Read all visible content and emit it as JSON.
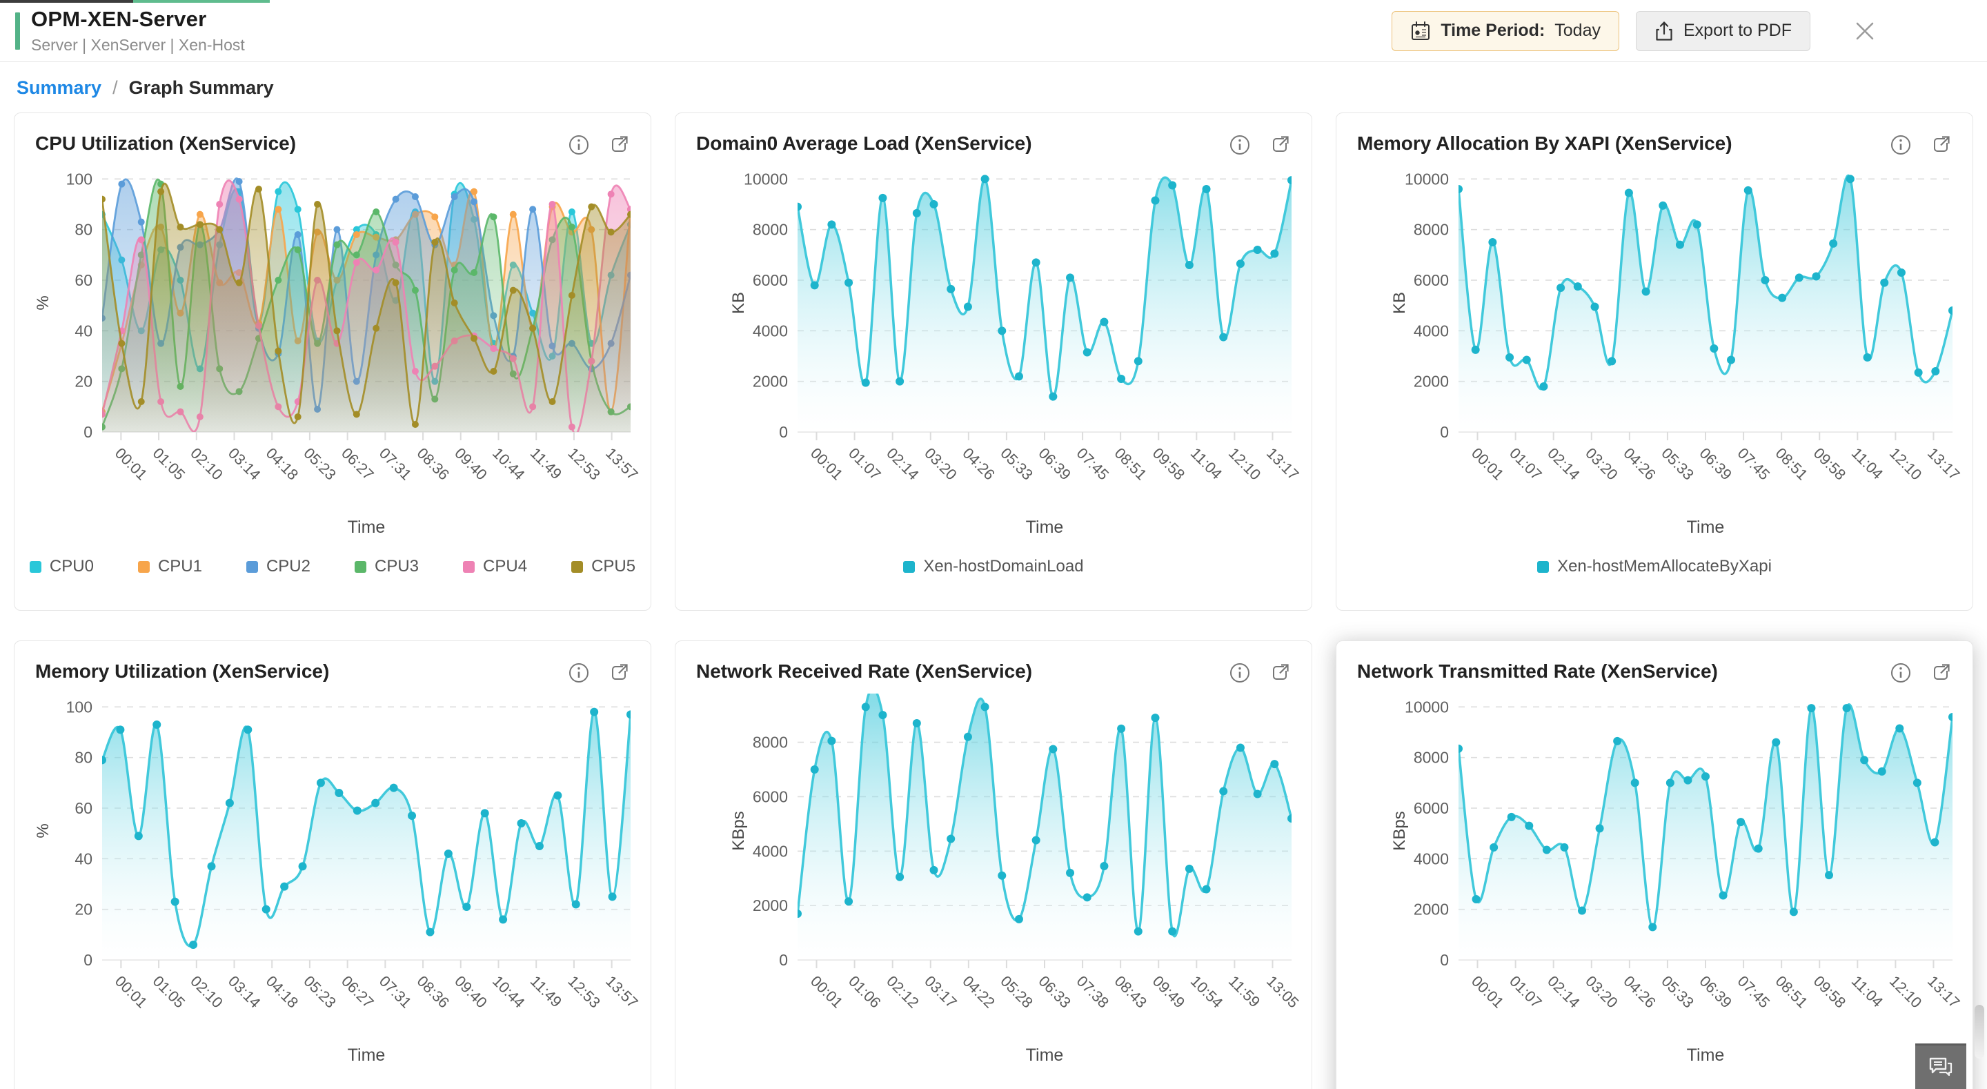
{
  "header": {
    "title": "OPM-XEN-Server",
    "subtitle": "Server | XenServer | Xen-Host",
    "time_period_label": "Time Period:",
    "time_period_value": "Today",
    "export_label": "Export to PDF",
    "icons": [
      "calendar-icon",
      "export-icon",
      "close-icon"
    ]
  },
  "breadcrumb": {
    "link": "Summary",
    "separator": "/",
    "current": "Graph Summary"
  },
  "colors": {
    "accent_green": "#53b287",
    "link_blue": "#1e88e5",
    "cyan": "#29c7d9",
    "orange": "#f7a54b",
    "blue": "#5b9cd9",
    "green": "#5bb769",
    "pink": "#ee82b4",
    "olive": "#a38d27"
  },
  "chart_data": [
    {
      "type": "area",
      "title": "CPU Utilization (XenService)",
      "xlabel": "Time",
      "ylabel": "%",
      "ylim": [
        0,
        100
      ],
      "yticks": [
        0,
        20,
        40,
        60,
        80,
        100
      ],
      "grid": "dashed-horizontal",
      "legend_position": "bottom",
      "categories": [
        "00:01",
        "01:05",
        "02:10",
        "03:14",
        "04:18",
        "05:23",
        "06:27",
        "07:31",
        "08:36",
        "09:40",
        "10:44",
        "11:49",
        "12:53",
        "13:57"
      ],
      "series": [
        {
          "name": "CPU0",
          "color": "#29c7d9",
          "values": [
            86,
            68,
            40,
            72,
            60,
            25,
            74,
            95,
            43,
            95,
            88,
            36,
            60,
            80,
            78,
            52,
            87,
            20,
            94,
            84,
            35,
            66,
            47,
            30,
            87,
            35,
            62,
            82
          ]
        },
        {
          "name": "CPU1",
          "color": "#f7a54b",
          "values": [
            8,
            35,
            66,
            81,
            47,
            86,
            59,
            63,
            43,
            88,
            36,
            79,
            60,
            78,
            77,
            76,
            86,
            85,
            66,
            95,
            33,
            86,
            41,
            89,
            79,
            80,
            8,
            88
          ]
        },
        {
          "name": "CPU2",
          "color": "#5b9cd9",
          "values": [
            45,
            98,
            83,
            35,
            73,
            74,
            80,
            99,
            41,
            31,
            78,
            9,
            80,
            20,
            70,
            92,
            93,
            74,
            93,
            91,
            46,
            30,
            88,
            34,
            35,
            25,
            35,
            62
          ]
        },
        {
          "name": "CPU3",
          "color": "#5bb769",
          "values": [
            2,
            25,
            70,
            98,
            18,
            82,
            25,
            16,
            37,
            60,
            72,
            35,
            74,
            70,
            87,
            66,
            56,
            13,
            64,
            63,
            85,
            23,
            41,
            76,
            81,
            28,
            8,
            10
          ]
        },
        {
          "name": "CPU4",
          "color": "#ee82b4",
          "values": [
            7,
            40,
            76,
            12,
            8,
            6,
            90,
            92,
            42,
            10,
            12,
            60,
            35,
            67,
            64,
            75,
            24,
            26,
            36,
            38,
            33,
            29,
            10,
            90,
            2,
            28,
            94,
            88
          ]
        },
        {
          "name": "CPU5",
          "color": "#a38d27",
          "values": [
            92,
            35,
            12,
            95,
            81,
            82,
            80,
            59,
            96,
            32,
            6,
            90,
            40,
            7,
            41,
            59,
            3,
            75,
            51,
            37,
            24,
            56,
            41,
            12,
            54,
            89,
            79,
            86
          ]
        }
      ]
    },
    {
      "type": "area",
      "title": "Domain0 Average Load (XenService)",
      "xlabel": "Time",
      "ylabel": "KB",
      "ylim": [
        0,
        10000
      ],
      "yticks": [
        0,
        2000,
        4000,
        6000,
        8000,
        10000
      ],
      "grid": "dashed-horizontal",
      "legend_position": "bottom",
      "categories": [
        "00:01",
        "01:07",
        "02:14",
        "03:20",
        "04:26",
        "05:33",
        "06:39",
        "07:45",
        "08:51",
        "09:58",
        "11:04",
        "12:10",
        "13:17"
      ],
      "series": [
        {
          "name": "Xen-hostDomainLoad",
          "color": "#41c9db",
          "dot": "#1db4cc",
          "values": [
            8900,
            5800,
            8200,
            5900,
            1950,
            9250,
            2000,
            8650,
            9000,
            5650,
            4950,
            10000,
            4000,
            2200,
            6700,
            1400,
            6100,
            3150,
            4350,
            2100,
            2800,
            9150,
            9750,
            6600,
            9600,
            3750,
            6650,
            7200,
            7050,
            9950
          ]
        }
      ]
    },
    {
      "type": "area",
      "title": "Memory Allocation By XAPI (XenService)",
      "xlabel": "Time",
      "ylabel": "KB",
      "ylim": [
        0,
        10000
      ],
      "yticks": [
        0,
        2000,
        4000,
        6000,
        8000,
        10000
      ],
      "grid": "dashed-horizontal",
      "legend_position": "bottom",
      "categories": [
        "00:01",
        "01:07",
        "02:14",
        "03:20",
        "04:26",
        "05:33",
        "06:39",
        "07:45",
        "08:51",
        "09:58",
        "11:04",
        "12:10",
        "13:17"
      ],
      "series": [
        {
          "name": "Xen-hostMemAllocateByXapi",
          "color": "#41c9db",
          "dot": "#1db4cc",
          "values": [
            9600,
            3250,
            7500,
            2950,
            2850,
            1800,
            5700,
            5750,
            4950,
            2800,
            9450,
            5550,
            8950,
            7400,
            8200,
            3300,
            2850,
            9550,
            6000,
            5300,
            6100,
            6150,
            7450,
            10000,
            2950,
            5900,
            6300,
            2350,
            2400,
            4800
          ]
        }
      ]
    },
    {
      "type": "area",
      "title": "Memory Utilization (XenService)",
      "xlabel": "Time",
      "ylabel": "%",
      "ylim": [
        0,
        100
      ],
      "yticks": [
        0,
        20,
        40,
        60,
        80,
        100
      ],
      "grid": "dashed-horizontal",
      "legend_position": "bottom",
      "categories": [
        "00:01",
        "01:05",
        "02:10",
        "03:14",
        "04:18",
        "05:23",
        "06:27",
        "07:31",
        "08:36",
        "09:40",
        "10:44",
        "11:49",
        "12:53",
        "13:57"
      ],
      "series": [
        {
          "color": "#41c9db",
          "dot": "#1db4cc",
          "values": [
            79,
            91,
            49,
            93,
            23,
            6,
            37,
            62,
            91,
            20,
            29,
            37,
            70,
            66,
            59,
            62,
            68,
            57,
            11,
            42,
            21,
            58,
            16,
            54,
            45,
            65,
            22,
            98,
            25,
            97
          ]
        }
      ]
    },
    {
      "type": "area",
      "title": "Network Received Rate (XenService)",
      "xlabel": "Time",
      "ylabel": "KBps",
      "ylim": [
        0,
        8000
      ],
      "yticks": [
        0,
        2000,
        4000,
        6000,
        8000
      ],
      "grid": "dashed-horizontal",
      "legend_position": "bottom",
      "categories": [
        "00:01",
        "01:06",
        "02:12",
        "03:17",
        "04:22",
        "05:28",
        "06:33",
        "07:38",
        "08:43",
        "09:49",
        "10:54",
        "11:59",
        "13:05"
      ],
      "series": [
        {
          "color": "#41c9db",
          "dot": "#1db4cc",
          "values": [
            1700,
            7000,
            8050,
            2150,
            9300,
            9000,
            3050,
            8700,
            3300,
            4450,
            8200,
            9300,
            3100,
            1500,
            4400,
            7750,
            3200,
            2300,
            3450,
            8500,
            1050,
            8900,
            1050,
            3350,
            2600,
            6200,
            7800,
            6100,
            7200,
            5200
          ]
        }
      ]
    },
    {
      "type": "area",
      "title": "Network Transmitted Rate (XenService)",
      "xlabel": "Time",
      "ylabel": "KBps",
      "ylim": [
        0,
        10000
      ],
      "yticks": [
        0,
        2000,
        4000,
        6000,
        8000,
        10000
      ],
      "grid": "dashed-horizontal",
      "legend_position": "bottom",
      "categories": [
        "00:01",
        "01:07",
        "02:14",
        "03:20",
        "04:26",
        "05:33",
        "06:39",
        "07:45",
        "08:51",
        "09:58",
        "11:04",
        "12:10",
        "13:17"
      ],
      "series": [
        {
          "color": "#41c9db",
          "dot": "#1db4cc",
          "values": [
            8350,
            2400,
            4450,
            5650,
            5300,
            4350,
            4450,
            1950,
            5200,
            8650,
            7000,
            1300,
            7000,
            7100,
            7250,
            2550,
            5450,
            4400,
            8600,
            1900,
            9950,
            3350,
            9950,
            7900,
            7450,
            9150,
            7000,
            4650,
            9600
          ]
        }
      ]
    }
  ]
}
